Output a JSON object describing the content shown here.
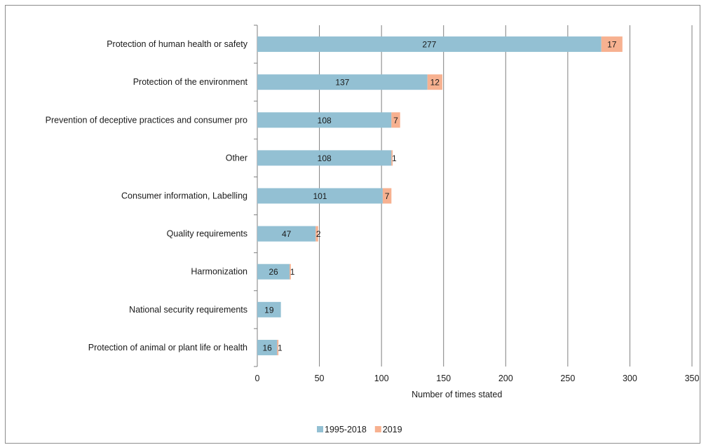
{
  "chart_data": {
    "type": "bar",
    "orientation": "horizontal",
    "stacked": true,
    "categories": [
      "Protection of human health or safety",
      "Protection of the environment",
      "Prevention of deceptive practices and consumer pro",
      "Other",
      "Consumer information, Labelling",
      "Quality requirements",
      "Harmonization",
      "National security requirements",
      "Protection of animal or plant life or health"
    ],
    "series": [
      {
        "name": "1995-2018",
        "color": "#93c0d3",
        "values": [
          277,
          137,
          108,
          108,
          101,
          47,
          26,
          19,
          16
        ]
      },
      {
        "name": "2019",
        "color": "#f7b190",
        "values": [
          17,
          12,
          7,
          1,
          7,
          2,
          1,
          null,
          1
        ]
      }
    ],
    "xlabel": "Number of times stated",
    "ylabel": "",
    "xlim": [
      0,
      350
    ],
    "xticks": [
      0,
      50,
      100,
      150,
      200,
      250,
      300,
      350
    ],
    "grid": "vertical",
    "legend": "bottom"
  }
}
